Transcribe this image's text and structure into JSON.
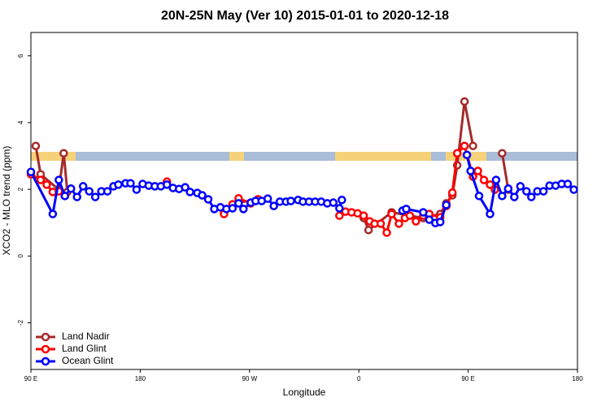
{
  "chart_data": {
    "type": "line",
    "title": "20N-25N May (Ver 10)   2015-01-01 to 2020-12-18",
    "x_label": "Longitude",
    "y_label": "XCO2 - MLO trend (ppm)",
    "xlim": [
      90,
      540
    ],
    "xticks": [
      {
        "value": 90,
        "label": "90 E"
      },
      180,
      {
        "value": 270,
        "label": "90 W"
      },
      {
        "value": 360,
        "label": "0"
      },
      {
        "value": 450,
        "label": "90 E"
      },
      {
        "value": 540,
        "label": "180"
      }
    ],
    "ylim": [
      -3.4,
      6.7
    ],
    "yticks": [
      -2,
      0,
      2,
      4,
      6
    ],
    "legend": "bottom-left",
    "series": [
      {
        "name": "Land Nadir",
        "color": "#a52a2a",
        "x": [
          94,
          98,
          113,
          117,
          120,
          null,
          249,
          261,
          277,
          null,
          364,
          368,
          387,
          413,
          427,
          432,
          437,
          441,
          447,
          454,
          null,
          478,
          483
        ],
        "values": [
          3.3,
          2.45,
          1.99,
          3.08,
          1.92,
          null,
          1.33,
          1.6,
          1.7,
          null,
          1.14,
          0.78,
          1.31,
          1.14,
          1.26,
          1.58,
          1.82,
          2.72,
          4.63,
          3.3,
          null,
          3.08,
          1.99
        ]
      },
      {
        "name": "Land Glint",
        "color": "#ff0000",
        "x": [
          90,
          98,
          103,
          108,
          113,
          118,
          null,
          202,
          null,
          249,
          256,
          261,
          271,
          277,
          null,
          344,
          349,
          354,
          359,
          364,
          369,
          373,
          378,
          383,
          387,
          393,
          398,
          402,
          407,
          413,
          418,
          427,
          432,
          437,
          441,
          447,
          454,
          458,
          463,
          468,
          472
        ],
        "values": [
          2.45,
          2.28,
          2.14,
          1.92,
          1.94,
          1.8,
          null,
          2.23,
          null,
          1.26,
          1.55,
          1.73,
          1.58,
          1.7,
          null,
          1.21,
          1.33,
          1.31,
          1.28,
          1.21,
          1.04,
          0.97,
          0.97,
          0.7,
          1.26,
          0.97,
          1.14,
          1.21,
          1.04,
          1.21,
          1.26,
          1.16,
          1.5,
          1.9,
          3.08,
          3.3,
          2.38,
          2.55,
          2.28,
          2.14,
          1.99
        ]
      },
      {
        "name": "Ocean Glint",
        "color": "#0000ff",
        "x": [
          90,
          108,
          113,
          118,
          123,
          128,
          133,
          138,
          143,
          148,
          153,
          158,
          162,
          168,
          172,
          177,
          182,
          187,
          192,
          197,
          202,
          207,
          212,
          217,
          221,
          227,
          231,
          236,
          241,
          246,
          251,
          256,
          261,
          265,
          271,
          275,
          280,
          285,
          290,
          295,
          300,
          304,
          310,
          314,
          319,
          324,
          329,
          334,
          339,
          344,
          346,
          null,
          396,
          399,
          413,
          418,
          423,
          427,
          432,
          null,
          449,
          452,
          459,
          468,
          473,
          478,
          483,
          488,
          493,
          498,
          502,
          507,
          512,
          517,
          522,
          527,
          532,
          537
        ],
        "values": [
          2.52,
          1.26,
          2.28,
          1.8,
          2.02,
          1.77,
          2.09,
          1.94,
          1.77,
          1.94,
          1.94,
          2.09,
          2.14,
          2.18,
          2.18,
          1.99,
          2.16,
          2.11,
          2.09,
          2.09,
          2.14,
          2.04,
          2.01,
          2.06,
          1.92,
          1.89,
          1.82,
          1.7,
          1.41,
          1.46,
          1.41,
          1.43,
          1.58,
          1.41,
          1.6,
          1.65,
          1.65,
          1.72,
          1.5,
          1.63,
          1.63,
          1.65,
          1.68,
          1.63,
          1.63,
          1.63,
          1.63,
          1.58,
          1.6,
          1.43,
          1.68,
          null,
          1.36,
          1.41,
          1.31,
          1.09,
          0.99,
          1.02,
          1.53,
          null,
          3.03,
          2.55,
          1.8,
          1.26,
          2.28,
          1.8,
          2.02,
          1.77,
          2.09,
          1.94,
          1.77,
          1.94,
          1.94,
          2.11,
          2.11,
          2.16,
          2.16,
          1.99
        ]
      }
    ]
  }
}
